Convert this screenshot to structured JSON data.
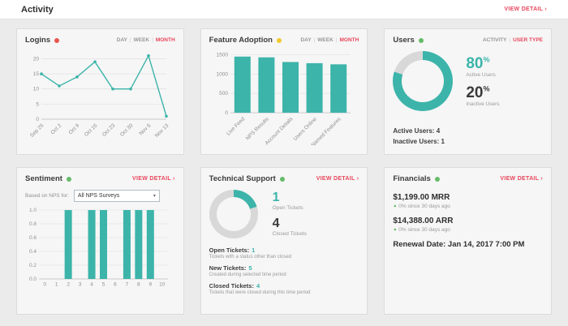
{
  "page": {
    "title": "Activity",
    "view_detail": "VIEW DETAIL ›"
  },
  "colors": {
    "accent": "#3cb4aa",
    "link": "#e8465a",
    "status_red": "#e8554e",
    "status_yellow": "#f0c92e",
    "status_green": "#66bb6a",
    "donut_track": "#d8d8d8",
    "delta_green": "#4caf50"
  },
  "panels": {
    "logins": {
      "title": "Logins",
      "toggles": [
        "DAY",
        "WEEK",
        "MONTH"
      ],
      "active_toggle": "MONTH",
      "chart": {
        "type": "line",
        "x": [
          "Sep 25",
          "Oct 2",
          "Oct 9",
          "Oct 16",
          "Oct 23",
          "Oct 30",
          "Nov 6",
          "Nov 13"
        ],
        "values": [
          15,
          11,
          14,
          19,
          10,
          10,
          21,
          1
        ],
        "ylim": [
          0,
          22
        ],
        "yticks": [
          "0",
          "5",
          "10",
          "15",
          "20"
        ]
      }
    },
    "feature_adoption": {
      "title": "Feature Adoption",
      "toggles": [
        "DAY",
        "WEEK",
        "MONTH"
      ],
      "active_toggle": "MONTH",
      "chart": {
        "type": "bar",
        "categories": [
          "Live Feed",
          "NPS Results",
          "Account Details",
          "Users Online",
          "Named Features"
        ],
        "values": [
          1450,
          1430,
          1310,
          1280,
          1250
        ],
        "ylim": [
          0,
          1550
        ],
        "yticks": [
          "0",
          "500",
          "1000",
          "1500"
        ]
      }
    },
    "users": {
      "title": "Users",
      "toggles": [
        "ACTIVITY",
        "USER TYPE"
      ],
      "active_toggle": "USER TYPE",
      "chart": {
        "type": "pie",
        "labels": [
          "Active Users",
          "Inactive Users"
        ],
        "values_pct": [
          80,
          20
        ]
      },
      "legend": [
        {
          "value": "80",
          "unit": "%",
          "label": "Active Users"
        },
        {
          "value": "20",
          "unit": "%",
          "label": "Inactive Users"
        }
      ],
      "summary": [
        "Active Users: 4",
        "Inactive Users: 1"
      ]
    },
    "sentiment": {
      "title": "Sentiment",
      "view_detail": "VIEW DETAIL ›",
      "filter_label": "Based on NPS for:",
      "filter_value": "All NPS Surveys",
      "chart": {
        "type": "bar",
        "categories": [
          "0",
          "1",
          "2",
          "3",
          "4",
          "5",
          "6",
          "7",
          "8",
          "9",
          "10"
        ],
        "values": [
          0,
          0,
          1,
          0,
          1,
          1,
          0,
          1,
          1,
          1,
          0
        ],
        "ylim": [
          0,
          1
        ],
        "yticks": [
          "0.0",
          "0.2",
          "0.4",
          "0.6",
          "0.8",
          "1.0"
        ]
      }
    },
    "technical_support": {
      "title": "Technical Support",
      "view_detail": "VIEW DETAIL ›",
      "chart": {
        "type": "pie",
        "labels": [
          "Open Tickets",
          "Closed Tickets"
        ],
        "values": [
          1,
          4
        ]
      },
      "stats": [
        {
          "value": "1",
          "label": "Open Tickets"
        },
        {
          "value": "4",
          "label": "Closed Tickets"
        }
      ],
      "notes": [
        {
          "label": "Open Tickets:",
          "value": "1",
          "sub": "Tickets with a status other than closed"
        },
        {
          "label": "New Tickets:",
          "value": "5",
          "sub": "Created during selected time period"
        },
        {
          "label": "Closed Tickets:",
          "value": "4",
          "sub": "Tickets that were closed during this time period"
        }
      ]
    },
    "financials": {
      "title": "Financials",
      "view_detail": "VIEW DETAIL ›",
      "items": [
        {
          "value": "$1,199.00 MRR",
          "delta": "0% since 30 days ago"
        },
        {
          "value": "$14,388.00 ARR",
          "delta": "0% since 30 days ago"
        }
      ],
      "renewal": "Renewal Date: Jan 14, 2017 7:00 PM"
    }
  }
}
